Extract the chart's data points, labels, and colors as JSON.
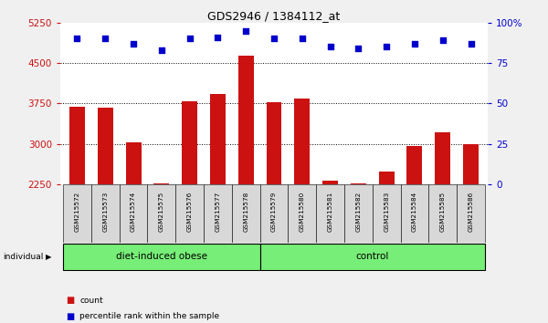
{
  "title": "GDS2946 / 1384112_at",
  "samples": [
    "GSM215572",
    "GSM215573",
    "GSM215574",
    "GSM215575",
    "GSM215576",
    "GSM215577",
    "GSM215578",
    "GSM215579",
    "GSM215580",
    "GSM215581",
    "GSM215582",
    "GSM215583",
    "GSM215584",
    "GSM215585",
    "GSM215586"
  ],
  "bar_values": [
    3680,
    3670,
    3020,
    2260,
    3790,
    3920,
    4640,
    3770,
    3840,
    2310,
    2260,
    2480,
    2960,
    3220,
    3000
  ],
  "dot_values": [
    90,
    90,
    87,
    83,
    90,
    91,
    95,
    90,
    90,
    85,
    84,
    85,
    87,
    89,
    87
  ],
  "bar_color": "#cc1111",
  "dot_color": "#0000cc",
  "ylim_left": [
    2250,
    5250
  ],
  "ylim_right": [
    0,
    100
  ],
  "yticks_left": [
    2250,
    3000,
    3750,
    4500,
    5250
  ],
  "yticks_right": [
    0,
    25,
    50,
    75,
    100
  ],
  "ytick_labels_right": [
    "0",
    "25",
    "50",
    "75",
    "100%"
  ],
  "grid_values": [
    3000,
    3750,
    4500
  ],
  "groups": [
    {
      "label": "diet-induced obese",
      "start": 0,
      "end": 7,
      "color": "#77ee77"
    },
    {
      "label": "control",
      "start": 7,
      "end": 15,
      "color": "#77ee77"
    }
  ],
  "group_divider": 7,
  "bg_color": "#f0f0f0",
  "plot_bg": "#ffffff",
  "cell_bg": "#d8d8d8",
  "legend_items": [
    {
      "color": "#cc1111",
      "label": "count"
    },
    {
      "color": "#0000cc",
      "label": "percentile rank within the sample"
    }
  ]
}
